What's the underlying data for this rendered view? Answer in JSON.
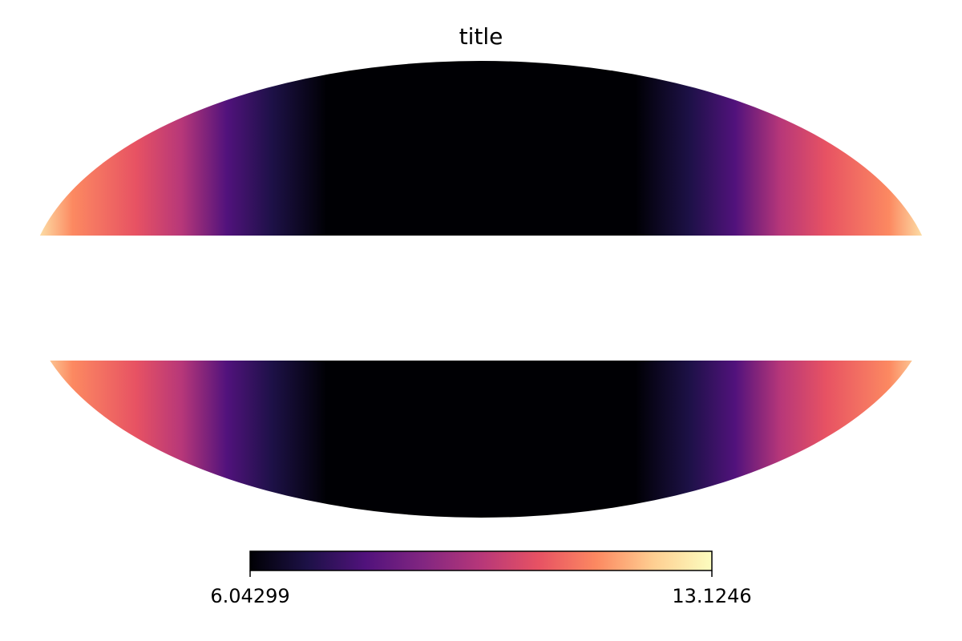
{
  "chart_data": {
    "type": "heatmap",
    "projection": "mollweide",
    "title": "title",
    "colormap": "magma",
    "colormap_stops": [
      "#000004",
      "#1d1147",
      "#51127c",
      "#822681",
      "#b73779",
      "#e75263",
      "#fc8961",
      "#fecf92",
      "#fcfdbf"
    ],
    "colorbar": {
      "min": 6.04299,
      "max": 13.1246,
      "min_label": "6.04299",
      "max_label": "13.1246"
    },
    "masked_band_latitude_deg": [
      -20,
      20
    ],
    "value_pattern": "minimum near longitude 0, increasing toward the map edges (|longitude| 180)",
    "mask_color": "#ffffff"
  }
}
